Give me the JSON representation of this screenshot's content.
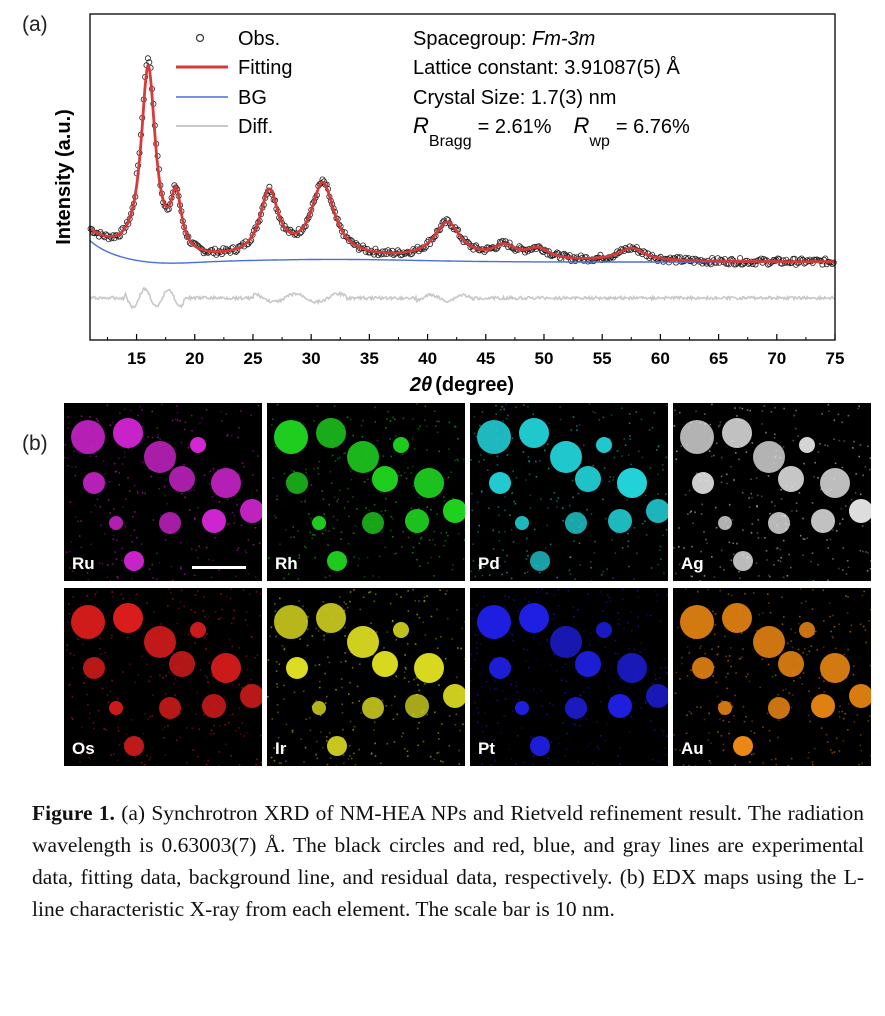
{
  "panel_a_label": "(a)",
  "panel_b_label": "(b)",
  "chart_data": {
    "type": "line",
    "xlabel_symbol": "2θ",
    "xlabel_unit": "(degree)",
    "ylabel": "Intensity (a.u.)",
    "xlim": [
      11,
      75
    ],
    "xticks": [
      15,
      20,
      25,
      30,
      35,
      40,
      45,
      50,
      55,
      60,
      65,
      70,
      75
    ],
    "legend": [
      "Obs.",
      "Fitting",
      "BG",
      "Diff."
    ],
    "legend_position": "top-left",
    "annotations": {
      "spacegroup_prefix": "Spacegroup: ",
      "spacegroup_value": "Fm-3m",
      "lattice": "Lattice constant: 3.91087(5) Å",
      "crystal_size": "Crystal Size: 1.7(3) nm",
      "rbragg_symbol": "R",
      "rbragg_sub": "Bragg",
      "rbragg_value": "= 2.61%",
      "rwp_symbol": "R",
      "rwp_sub": "wp",
      "rwp_value": "= 6.76%"
    },
    "peaks": [
      {
        "center": 16.0,
        "height": 0.88,
        "width": 0.75
      },
      {
        "center": 18.4,
        "height": 0.26,
        "width": 0.55
      },
      {
        "center": 26.4,
        "height": 0.3,
        "width": 0.95
      },
      {
        "center": 31.0,
        "height": 0.34,
        "width": 1.2
      },
      {
        "center": 41.7,
        "height": 0.17,
        "width": 1.4
      },
      {
        "center": 46.6,
        "height": 0.06,
        "width": 1.2
      },
      {
        "center": 49.5,
        "height": 0.05,
        "width": 1.2
      },
      {
        "center": 57.5,
        "height": 0.06,
        "width": 1.4
      }
    ],
    "series_colors": {
      "obs": "#222222",
      "fit": "#d63a3a",
      "bg": "#4a6fd8",
      "diff": "#c8c8c8"
    }
  },
  "edx_maps": [
    {
      "element": "Ru",
      "color": "#d726d7"
    },
    {
      "element": "Rh",
      "color": "#1fd11f"
    },
    {
      "element": "Pd",
      "color": "#22d2d8"
    },
    {
      "element": "Ag",
      "color": "#e6e6e6"
    },
    {
      "element": "Os",
      "color": "#e01d1d"
    },
    {
      "element": "Ir",
      "color": "#dcdc22"
    },
    {
      "element": "Pt",
      "color": "#1f1fe6"
    },
    {
      "element": "Au",
      "color": "#f08a14"
    }
  ],
  "caption": {
    "label": "Figure 1.",
    "text": " (a) Synchrotron XRD of NM-HEA NPs and Rietveld refinement result. The radiation wavelength is 0.63003(7) Å. The black circles and red, blue, and gray lines are experimental data, fitting data, background line, and residual data, respectively. (b) EDX maps using the L-line characteristic X-ray from each element. The scale bar is 10 nm."
  }
}
